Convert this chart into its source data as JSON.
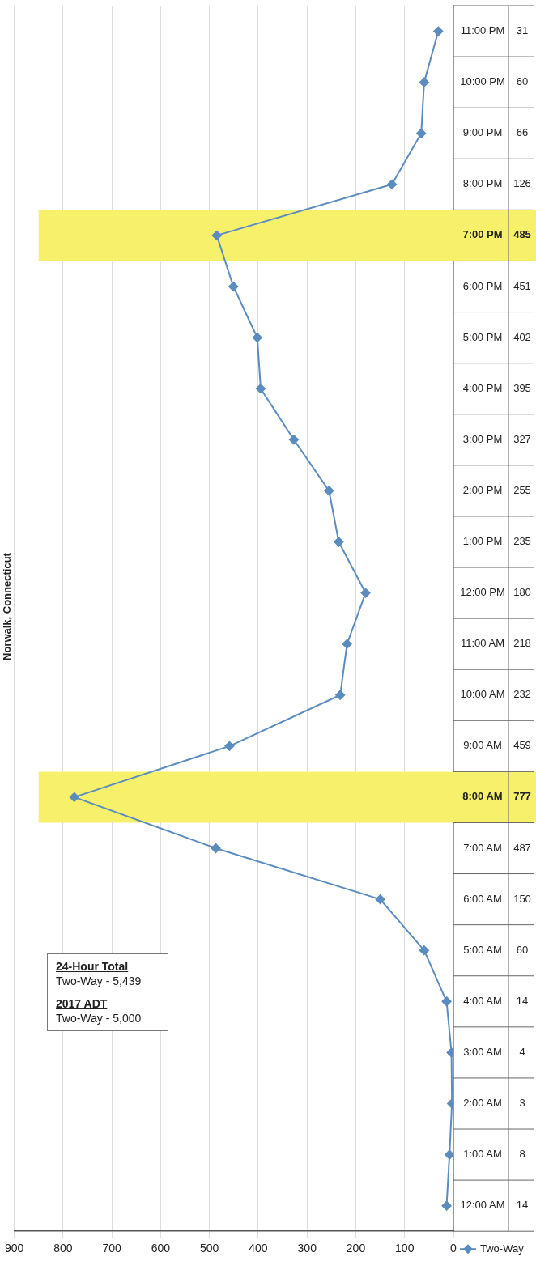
{
  "chart_data": {
    "type": "line",
    "title": "Norwalk, Connecticut",
    "orientation": "horizontal",
    "categories": [
      "11:00 PM",
      "10:00 PM",
      "9:00 PM",
      "8:00 PM",
      "7:00 PM",
      "6:00 PM",
      "5:00 PM",
      "4:00 PM",
      "3:00 PM",
      "2:00 PM",
      "1:00 PM",
      "12:00 PM",
      "11:00 AM",
      "10:00 AM",
      "9:00 AM",
      "8:00 AM",
      "7:00 AM",
      "6:00 AM",
      "5:00 AM",
      "4:00 AM",
      "3:00 AM",
      "2:00 AM",
      "1:00 AM",
      "12:00 AM"
    ],
    "series": [
      {
        "name": "Two-Way",
        "color": "#5b8cbf",
        "values": [
          31,
          60,
          66,
          126,
          485,
          451,
          402,
          395,
          327,
          255,
          235,
          180,
          218,
          232,
          459,
          777,
          487,
          150,
          60,
          14,
          4,
          3,
          8,
          14
        ]
      }
    ],
    "xlim": [
      900,
      0
    ],
    "xticks": [
      900,
      800,
      700,
      600,
      500,
      400,
      300,
      200,
      100,
      0
    ],
    "grid": "x",
    "legend": "bottom right",
    "marker": "diamond",
    "line_style": "solid",
    "data_labels": true,
    "bands": [
      {
        "axis": "y",
        "from": "8:00 AM",
        "to": "8:00 AM",
        "color": "#f7f06a"
      },
      {
        "axis": "y",
        "from": "7:00 PM",
        "to": "7:00 PM",
        "color": "#f7f06a"
      }
    ],
    "annotations": [
      "24-Hour Total",
      "Two-Way - 5,439",
      "2017 ADT",
      "Two-Way - 5,000"
    ]
  }
}
